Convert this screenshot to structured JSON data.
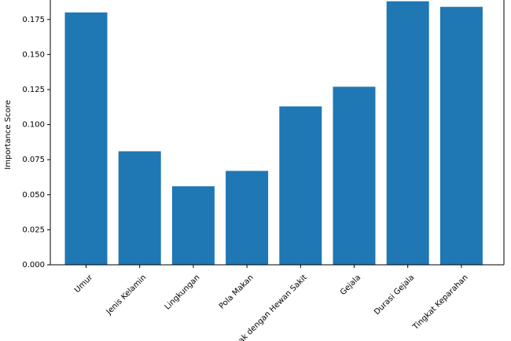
{
  "chart_data": {
    "type": "bar",
    "categories": [
      "Umur",
      "Jenis Kelamin",
      "Lingkungan",
      "Pola Makan",
      "Kontak dengan Hewan Sakit",
      "Gejala",
      "Durasi Gejala",
      "Tingkat Keparahan"
    ],
    "values": [
      0.18,
      0.081,
      0.056,
      0.067,
      0.113,
      0.127,
      0.188,
      0.184
    ],
    "title": "",
    "xlabel": "",
    "ylabel": "Importance Score",
    "ylim": [
      0,
      0.19
    ],
    "yticks": [
      "0.000",
      "0.025",
      "0.050",
      "0.075",
      "0.100",
      "0.125",
      "0.150",
      "0.175"
    ],
    "grid": false,
    "bar_color": "#1f77b4"
  }
}
